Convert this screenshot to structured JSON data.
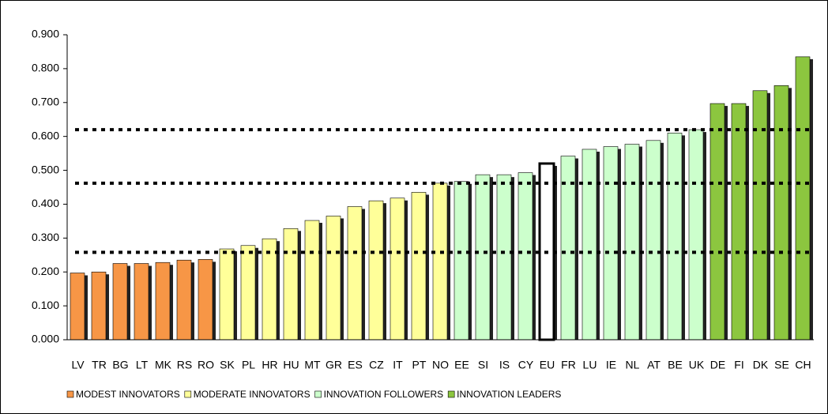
{
  "chart_data": {
    "type": "bar",
    "categories": [
      "LV",
      "TR",
      "BG",
      "LT",
      "MK",
      "RS",
      "RO",
      "SK",
      "PL",
      "HR",
      "HU",
      "MT",
      "GR",
      "ES",
      "CZ",
      "IT",
      "PT",
      "NO",
      "EE",
      "SI",
      "IS",
      "CY",
      "EU",
      "FR",
      "LU",
      "IE",
      "NL",
      "AT",
      "BE",
      "UK",
      "DE",
      "FI",
      "DK",
      "SE",
      "CH"
    ],
    "series": [
      {
        "name": "MODEST INNOVATORS",
        "color": "#f79646",
        "values": [
          0.197,
          0.2,
          0.225,
          0.225,
          0.228,
          0.235,
          0.237,
          null,
          null,
          null,
          null,
          null,
          null,
          null,
          null,
          null,
          null,
          null,
          null,
          null,
          null,
          null,
          null,
          null,
          null,
          null,
          null,
          null,
          null,
          null,
          null,
          null,
          null,
          null,
          null
        ]
      },
      {
        "name": "MODERATE INNOVATORS",
        "color": "#ffff99",
        "values": [
          null,
          null,
          null,
          null,
          null,
          null,
          null,
          0.268,
          0.278,
          0.298,
          0.328,
          0.352,
          0.365,
          0.393,
          0.41,
          0.418,
          0.435,
          0.462,
          null,
          null,
          null,
          null,
          null,
          null,
          null,
          null,
          null,
          null,
          null,
          null,
          null,
          null,
          null,
          null,
          null
        ]
      },
      {
        "name": "INNOVATION FOLLOWERS",
        "color": "#ccffcc",
        "values": [
          null,
          null,
          null,
          null,
          null,
          null,
          null,
          null,
          null,
          null,
          null,
          null,
          null,
          null,
          null,
          null,
          null,
          null,
          0.467,
          0.487,
          0.487,
          0.493,
          0.52,
          0.542,
          0.562,
          0.57,
          0.577,
          0.588,
          0.61,
          0.62,
          null,
          null,
          null,
          null,
          null
        ]
      },
      {
        "name": "INNOVATION LEADERS",
        "color": "#8cc63f",
        "values": [
          null,
          null,
          null,
          null,
          null,
          null,
          null,
          null,
          null,
          null,
          null,
          null,
          null,
          null,
          null,
          null,
          null,
          null,
          null,
          null,
          null,
          null,
          null,
          null,
          null,
          null,
          null,
          null,
          null,
          null,
          0.697,
          0.697,
          0.735,
          0.75,
          0.835
        ]
      }
    ],
    "highlight_category": "EU",
    "reference_lines": [
      0.258,
      0.462,
      0.62
    ],
    "ylim": [
      0,
      0.9
    ],
    "yticks": [
      {
        "value": 0,
        "label": "0.000"
      },
      {
        "value": 0.1,
        "label": "0.100"
      },
      {
        "value": 0.2,
        "label": "0.200"
      },
      {
        "value": 0.3,
        "label": "0.300"
      },
      {
        "value": 0.4,
        "label": "0.400"
      },
      {
        "value": 0.5,
        "label": "0.500"
      },
      {
        "value": 0.6,
        "label": "0.600"
      },
      {
        "value": 0.7,
        "label": "0.700"
      },
      {
        "value": 0.8,
        "label": "0.800"
      },
      {
        "value": 0.9,
        "label": "0.900"
      }
    ],
    "grid": false,
    "legend": "bottom"
  }
}
